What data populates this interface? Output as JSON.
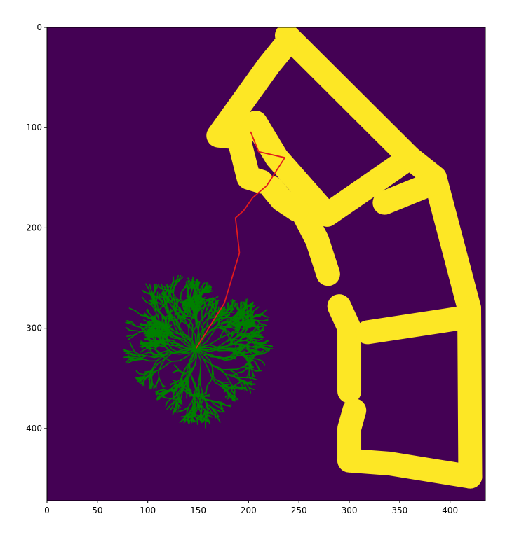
{
  "chart_data": {
    "type": "heatmap",
    "title": "",
    "xlabel": "",
    "ylabel": "",
    "xlim": [
      0,
      435
    ],
    "ylim": [
      472,
      0
    ],
    "x_ticks": [
      0,
      50,
      100,
      150,
      200,
      250,
      300,
      350,
      400
    ],
    "y_ticks": [
      0,
      100,
      200,
      300,
      400
    ],
    "x_tick_labels": [
      "0",
      "50",
      "100",
      "150",
      "200",
      "250",
      "300",
      "350",
      "400"
    ],
    "y_tick_labels": [
      "0",
      "100",
      "200",
      "300",
      "400"
    ],
    "grid": false,
    "colors": {
      "free_space": "#440154",
      "obstacle": "#fde725",
      "tree": "#008000",
      "path": "#e31a1c"
    },
    "obstacle_paths": [
      [
        [
          238,
          8
        ],
        [
          290,
          60
        ],
        [
          360,
          130
        ],
        [
          278,
          187
        ],
        [
          228,
          130
        ],
        [
          207,
          95
        ],
        [
          190,
          110
        ],
        [
          200,
          150
        ],
        [
          213,
          154
        ]
      ],
      [
        [
          360,
          130
        ],
        [
          385,
          150
        ],
        [
          419,
          280
        ]
      ],
      [
        [
          419,
          280
        ],
        [
          420,
          448
        ]
      ],
      [
        [
          420,
          448
        ],
        [
          340,
          435
        ],
        [
          300,
          432
        ]
      ],
      [
        [
          300,
          432
        ],
        [
          300,
          400
        ],
        [
          305,
          382
        ]
      ],
      [
        [
          300,
          363
        ],
        [
          300,
          300
        ],
        [
          290,
          278
        ]
      ],
      [
        [
          279,
          246
        ],
        [
          268,
          212
        ],
        [
          255,
          187
        ]
      ],
      [
        [
          223,
          160
        ],
        [
          233,
          172
        ],
        [
          248,
          182
        ]
      ],
      [
        [
          190,
          110
        ],
        [
          170,
          108
        ],
        [
          220,
          38
        ],
        [
          237,
          17
        ]
      ],
      [
        [
          318,
          304
        ],
        [
          410,
          290
        ]
      ],
      [
        [
          335,
          175
        ],
        [
          384,
          155
        ]
      ]
    ],
    "tree_root": [
      148,
      320
    ],
    "path_points": [
      [
        148,
        320
      ],
      [
        176,
        275
      ],
      [
        191,
        225
      ],
      [
        187,
        190
      ],
      [
        195,
        183
      ],
      [
        204,
        170
      ],
      [
        218,
        158
      ],
      [
        236,
        130
      ],
      [
        210,
        124
      ],
      [
        202,
        104
      ]
    ]
  }
}
